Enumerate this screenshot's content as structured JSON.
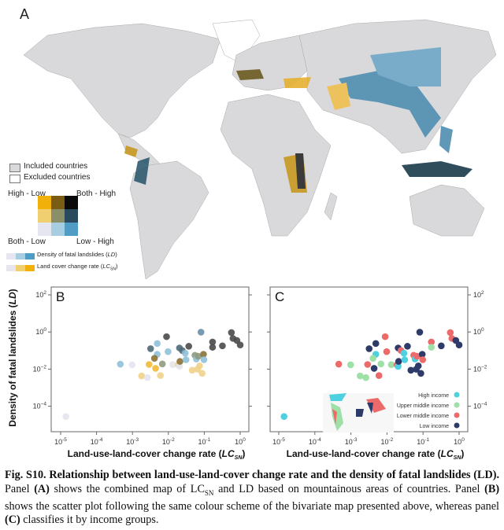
{
  "panel_a": {
    "label": "A",
    "legend": {
      "included": "Included countries",
      "excluded": "Excluded countries",
      "corner_top_left": "High - Low",
      "corner_top_right": "Both - High",
      "corner_bottom_left": "Both - Low",
      "corner_bottom_right": "Low - High",
      "grid_colors": [
        [
          "#f2b10a",
          "#7a5c14",
          "#0a0a0a"
        ],
        [
          "#f0cf70",
          "#8a8f6a",
          "#284a5c"
        ],
        [
          "#e6e6f0",
          "#a6cde0",
          "#4f9cc4"
        ]
      ],
      "ld_label": "Density of fatal landslides (LD)",
      "lc_label": "Land cover change rate (LC_SN)",
      "ld_ramp": [
        "#e6e6f0",
        "#a6cde0",
        "#4f9cc4"
      ],
      "lc_ramp": [
        "#e6e6f0",
        "#f0cf70",
        "#f2b10a"
      ]
    }
  },
  "chart_data": [
    {
      "type": "scatter",
      "panel": "B",
      "xlabel": "Land-use-land-cover change rate (LC_SN)",
      "ylabel": "Density of fatal landslides (LD)",
      "xscale": "log",
      "yscale": "log",
      "xlim": [
        1e-05,
        1
      ],
      "ylim": [
        1e-05,
        100
      ],
      "xticks": [
        "10^-5",
        "10^-4",
        "10^-3",
        "10^-2",
        "10^-1",
        "10^0"
      ],
      "yticks": [
        "10^2",
        "10^0",
        "10^-2",
        "10^-4"
      ],
      "grid": false,
      "color_by": "bivariate class"
    },
    {
      "type": "scatter",
      "panel": "C",
      "xlabel": "Land-use-land-cover change rate (LC_SN)",
      "xscale": "log",
      "yscale": "log",
      "xlim": [
        1e-05,
        1
      ],
      "ylim": [
        1e-05,
        100
      ],
      "xticks": [
        "10^-5",
        "10^-4",
        "10^-3",
        "10^-2",
        "10^-1",
        "10^0"
      ],
      "yticks": [
        "10^2",
        "10^0",
        "10^-2",
        "10^-4"
      ],
      "grid": false,
      "legend_position": "bottom-right",
      "legend": [
        {
          "name": "High income",
          "color": "#4fd0e0"
        },
        {
          "name": "Upper middle income",
          "color": "#9ee0a8"
        },
        {
          "name": "Lower middle income",
          "color": "#ec6a6a"
        },
        {
          "name": "Low income",
          "color": "#2e3a68"
        }
      ]
    }
  ],
  "points": [
    {
      "x": 1.4e-05,
      "y": 2.8e-05,
      "bivar": "#e4e4ee",
      "income": "High income"
    },
    {
      "x": 0.00046,
      "y": 0.0186,
      "bivar": "#8fc1d8",
      "income": "Lower middle income"
    },
    {
      "x": 0.00098,
      "y": 0.017,
      "bivar": "#e4e4ee",
      "income": "Upper middle income"
    },
    {
      "x": 0.0018,
      "y": 0.0043,
      "bivar": "#f0d28a",
      "income": "Upper middle income"
    },
    {
      "x": 0.0026,
      "y": 0.0035,
      "bivar": "#e4e4ee",
      "income": "Upper middle income"
    },
    {
      "x": 0.0032,
      "y": 0.126,
      "bivar": "#4f6a78",
      "income": "Low income"
    },
    {
      "x": 0.0029,
      "y": 0.0178,
      "bivar": "#f2b935",
      "income": "Lower middle income"
    },
    {
      "x": 0.0044,
      "y": 0.011,
      "bivar": "#f2b935",
      "income": "Low income"
    },
    {
      "x": 0.0049,
      "y": 0.24,
      "bivar": "#8fc1d8",
      "income": "Low income"
    },
    {
      "x": 0.0049,
      "y": 0.063,
      "bivar": "#8fc1d8",
      "income": "High income"
    },
    {
      "x": 0.0041,
      "y": 0.038,
      "bivar": "#8b7235",
      "income": "Upper middle income"
    },
    {
      "x": 0.006,
      "y": 0.0045,
      "bivar": "#f0d28a",
      "income": "Lower middle income"
    },
    {
      "x": 0.0068,
      "y": 0.019,
      "bivar": "#8e9a80",
      "income": "Upper middle income"
    },
    {
      "x": 0.0089,
      "y": 0.56,
      "bivar": "#4a4a4a",
      "income": "Lower middle income"
    },
    {
      "x": 0.0098,
      "y": 0.087,
      "bivar": "#8fc1d8",
      "income": "Lower middle income"
    },
    {
      "x": 0.0132,
      "y": 0.0174,
      "bivar": "#e4e4ee",
      "income": "Upper middle income"
    },
    {
      "x": 0.019,
      "y": 0.017,
      "bivar": "#f0d28a",
      "income": "Lower middle income"
    },
    {
      "x": 0.0204,
      "y": 0.014,
      "bivar": "#e4e4ee",
      "income": "High income"
    },
    {
      "x": 0.0204,
      "y": 0.138,
      "bivar": "#4f6a78",
      "income": "Low income"
    },
    {
      "x": 0.0245,
      "y": 0.1,
      "bivar": "#4f6a78",
      "income": "Lower middle income"
    },
    {
      "x": 0.021,
      "y": 0.026,
      "bivar": "#8b7235",
      "income": "Low income"
    },
    {
      "x": 0.0295,
      "y": 0.072,
      "bivar": "#8fc1d8",
      "income": "High income"
    },
    {
      "x": 0.031,
      "y": 0.032,
      "bivar": "#8fc1d8",
      "income": "High income"
    },
    {
      "x": 0.037,
      "y": 0.17,
      "bivar": "#4a4a4a",
      "income": "Low income"
    },
    {
      "x": 0.046,
      "y": 0.0087,
      "bivar": "#f0d28a",
      "income": "Low income"
    },
    {
      "x": 0.065,
      "y": 0.0098,
      "bivar": "#f0d28a",
      "income": "Low income"
    },
    {
      "x": 0.074,
      "y": 0.015,
      "bivar": "#f0d28a",
      "income": "Low income"
    },
    {
      "x": 0.087,
      "y": 0.0059,
      "bivar": "#f0d28a",
      "income": "Low income"
    },
    {
      "x": 0.055,
      "y": 0.056,
      "bivar": "#8e9a80",
      "income": "Lower middle income"
    },
    {
      "x": 0.06,
      "y": 0.035,
      "bivar": "#8fc1d8",
      "income": "High income"
    },
    {
      "x": 0.068,
      "y": 0.049,
      "bivar": "#8e9a80",
      "income": "Lower middle income"
    },
    {
      "x": 0.081,
      "y": 0.98,
      "bivar": "#6a90a8",
      "income": "Low income"
    },
    {
      "x": 0.095,
      "y": 0.063,
      "bivar": "#8b7235",
      "income": "Low income"
    },
    {
      "x": 0.098,
      "y": 0.032,
      "bivar": "#8fc1d8",
      "income": "Lower middle income"
    },
    {
      "x": 0.17,
      "y": 0.29,
      "bivar": "#4a4a4a",
      "income": "Lower middle income"
    },
    {
      "x": 0.17,
      "y": 0.15,
      "bivar": "#4a4a4a",
      "income": "Upper middle income"
    },
    {
      "x": 0.32,
      "y": 0.18,
      "bivar": "#4a4a4a",
      "income": "Low income"
    },
    {
      "x": 0.57,
      "y": 0.93,
      "bivar": "#4a4a4a",
      "income": "Lower middle income"
    },
    {
      "x": 0.63,
      "y": 0.45,
      "bivar": "#4a4a4a",
      "income": "Lower middle income"
    },
    {
      "x": 0.81,
      "y": 0.35,
      "bivar": "#4a4a4a",
      "income": "Low income"
    },
    {
      "x": 1.0,
      "y": 0.2,
      "bivar": "#4a4a4a",
      "income": "Low income"
    }
  ],
  "caption": {
    "fig": "Fig. S10.",
    "title": "Relationship between land-use-land-cover change rate and the density of fatal landslides (LD).",
    "p1a": "Panel",
    "p1b": "(A)",
    "p1c": "shows the combined map of LC",
    "p1sub": "SN",
    "p1d": "and LD based on mountainous areas of countries. Panel",
    "p1e": "(B)",
    "p1f": "shows the scatter plot following the same colour scheme of the bivariate map presented above, whereas panel",
    "p1g": "(C)",
    "p1h": "classifies it by income groups."
  }
}
